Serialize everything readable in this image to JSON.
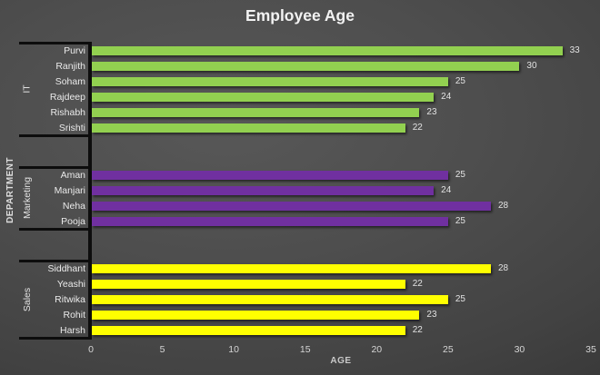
{
  "chart": {
    "title": "Employee Age",
    "xlabel": "AGE",
    "ylabel": "DEPARTMENT"
  },
  "chart_data": {
    "type": "bar",
    "orientation": "horizontal",
    "title": "Employee Age",
    "xlabel": "AGE",
    "ylabel": "DEPARTMENT",
    "xlim": [
      0,
      35
    ],
    "xticks": [
      0,
      5,
      10,
      15,
      20,
      25,
      30,
      35
    ],
    "grid": false,
    "legend": "none",
    "value_labels": true,
    "groups": [
      {
        "name": "IT",
        "color": "#92d050",
        "members": [
          {
            "label": "Purvi",
            "value": 33
          },
          {
            "label": "Ranjith",
            "value": 30
          },
          {
            "label": "Soham",
            "value": 25
          },
          {
            "label": "Rajdeep",
            "value": 24
          },
          {
            "label": "Rishabh",
            "value": 23
          },
          {
            "label": "Srishti",
            "value": 22
          }
        ]
      },
      {
        "name": "Marketing",
        "color": "#7030a0",
        "members": [
          {
            "label": "Aman",
            "value": 25
          },
          {
            "label": "Manjari",
            "value": 24
          },
          {
            "label": "Neha",
            "value": 28
          },
          {
            "label": "Pooja",
            "value": 25
          }
        ]
      },
      {
        "name": "Sales",
        "color": "#ffff00",
        "members": [
          {
            "label": "Siddhant",
            "value": 28
          },
          {
            "label": "Yeashi",
            "value": 22
          },
          {
            "label": "Ritwika",
            "value": 25
          },
          {
            "label": "Rohit",
            "value": 23
          },
          {
            "label": "Harsh",
            "value": 22
          }
        ]
      }
    ],
    "colors": {
      "background_light": "#585858",
      "background_dark": "#2c2c2c",
      "axis_line": "#0d0d0d",
      "title_text": "#f2f2f2",
      "label_text": "#e2e2e2",
      "tick_text": "#d6d6d6"
    }
  }
}
